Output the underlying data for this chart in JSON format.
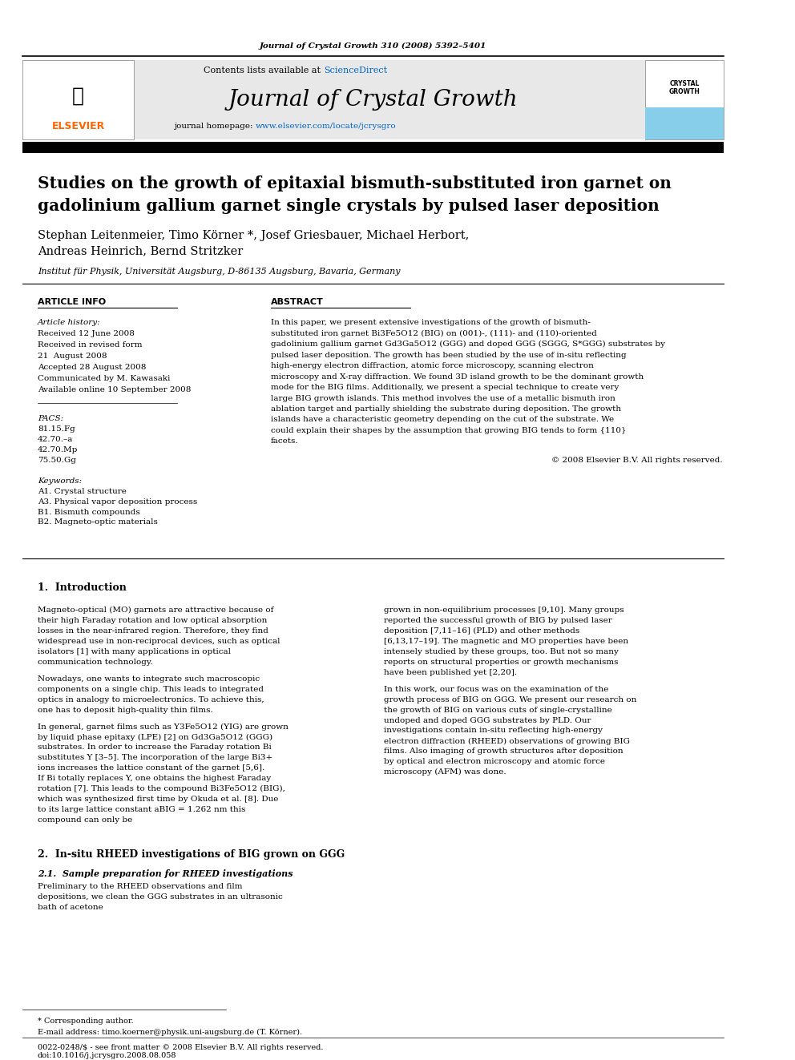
{
  "journal_ref": "Journal of Crystal Growth 310 (2008) 5392–5401",
  "contents_text": "Contents lists available at ",
  "sciencedirect_text": "ScienceDirect",
  "journal_name": "Journal of Crystal Growth",
  "homepage_text": "journal homepage: ",
  "homepage_url": "www.elsevier.com/locate/jcrysgro",
  "paper_title_line1": "Studies on the growth of epitaxial bismuth-substituted iron garnet on",
  "paper_title_line2": "gadolinium gallium garnet single crystals by pulsed laser deposition",
  "authors": "Stephan Leitenmeier, Timo Körner *, Josef Griesbauer, Michael Herbort,",
  "authors2": "Andreas Heinrich, Bernd Stritzker",
  "affiliation": "Institut für Physik, Universität Augsburg, D-86135 Augsburg, Bavaria, Germany",
  "article_info_header": "ARTICLE INFO",
  "abstract_header": "ABSTRACT",
  "article_history_label": "Article history:",
  "received": "Received 12 June 2008",
  "revised": "Received in revised form",
  "revised2": "21  August 2008",
  "accepted": "Accepted 28 August 2008",
  "communicated": "Communicated by M. Kawasaki",
  "available": "Available online 10 September 2008",
  "pacs_label": "PACS:",
  "pacs1": "81.15.Fg",
  "pacs2": "42.70.–a",
  "pacs3": "42.70.Mp",
  "pacs4": "75.50.Gg",
  "keywords_label": "Keywords:",
  "kw1": "A1. Crystal structure",
  "kw2": "A3. Physical vapor deposition process",
  "kw3": "B1. Bismuth compounds",
  "kw4": "B2. Magneto-optic materials",
  "abstract_text": "In this paper, we present extensive investigations of the growth of bismuth-substituted iron garnet Bi3Fe5O12 (BIG) on (001)-, (111)- and (110)-oriented gadolinium gallium garnet Gd3Ga5O12 (GGG) and doped GGG (SGGG, S*GGG) substrates by pulsed laser deposition. The growth has been studied by the use of in-situ reflecting high-energy electron diffraction, atomic force microscopy, scanning electron microscopy and X-ray diffraction. We found 3D island growth to be the dominant growth mode for the BIG films. Additionally, we present a special technique to create very large BIG growth islands. This method involves the use of a metallic bismuth iron ablation target and partially shielding the substrate during deposition. The growth islands have a characteristic geometry depending on the cut of the substrate. We could explain their shapes by the assumption that growing BIG tends to form {110} facets.",
  "copyright": "© 2008 Elsevier B.V. All rights reserved.",
  "section1_header": "1.  Introduction",
  "intro_col1_p1": "Magneto-optical (MO) garnets are attractive because of their high Faraday rotation and low optical absorption losses in the near-infrared region. Therefore, they find widespread use in non-reciprocal devices, such as optical isolators [1] with many applications in optical communication technology.",
  "intro_col1_p2": "Nowadays, one wants to integrate such macroscopic components on a single chip. This leads to integrated optics in analogy to microelectronics. To achieve this, one has to deposit high-quality thin films.",
  "intro_col1_p3": "In general, garnet films such as Y3Fe5O12 (YIG) are grown by liquid phase epitaxy (LPE) [2] on Gd3Ga5O12 (GGG) substrates. In order to increase the Faraday rotation Bi substitutes Y [3–5]. The incorporation of the large Bi3+ ions increases the lattice constant of the garnet [5,6]. If Bi totally replaces Y, one obtains the highest Faraday rotation [7]. This leads to the compound Bi3Fe5O12 (BIG), which was synthesized first time by Okuda et al. [8]. Due to its large lattice constant aBIG = 1.262 nm this compound can only be",
  "intro_col2_p1": "grown in non-equilibrium processes [9,10]. Many groups reported the successful growth of BIG by pulsed laser deposition [7,11–16] (PLD) and other methods [6,13,17–19]. The magnetic and MO properties have been intensely studied by these groups, too. But not so many reports on structural properties or growth mechanisms have been published yet [2,20].",
  "intro_col2_p2": "In this work, our focus was on the examination of the growth process of BIG on GGG. We present our research on the growth of BIG on various cuts of single-crystalline undoped and doped GGG substrates by PLD. Our investigations contain in-situ reflecting high-energy electron diffraction (RHEED) observations of growing BIG films. Also imaging of growth structures after deposition by optical and electron microscopy and atomic force microscopy (AFM) was done.",
  "section2_header": "2.  In-situ RHEED investigations of BIG grown on GGG",
  "section21_header": "2.1.  Sample preparation for RHEED investigations",
  "section21_text": "Preliminary to the RHEED observations and film depositions, we clean the GGG substrates in an ultrasonic bath of acetone",
  "footnote_star": "* Corresponding author.",
  "footnote_email": "E-mail address: timo.koerner@physik.uni-augsburg.de (T. Körner).",
  "footnote_issn": "0022-0248/$ - see front matter © 2008 Elsevier B.V. All rights reserved.",
  "footnote_doi": "doi:10.1016/j.jcrysgro.2008.08.058",
  "header_bg": "#e8e8e8",
  "banner_bg": "#000000",
  "blue_color": "#0000cc",
  "link_color": "#0066cc",
  "crystal_growth_blue": "#87ceeb",
  "text_color": "#000000",
  "title_color": "#000000"
}
